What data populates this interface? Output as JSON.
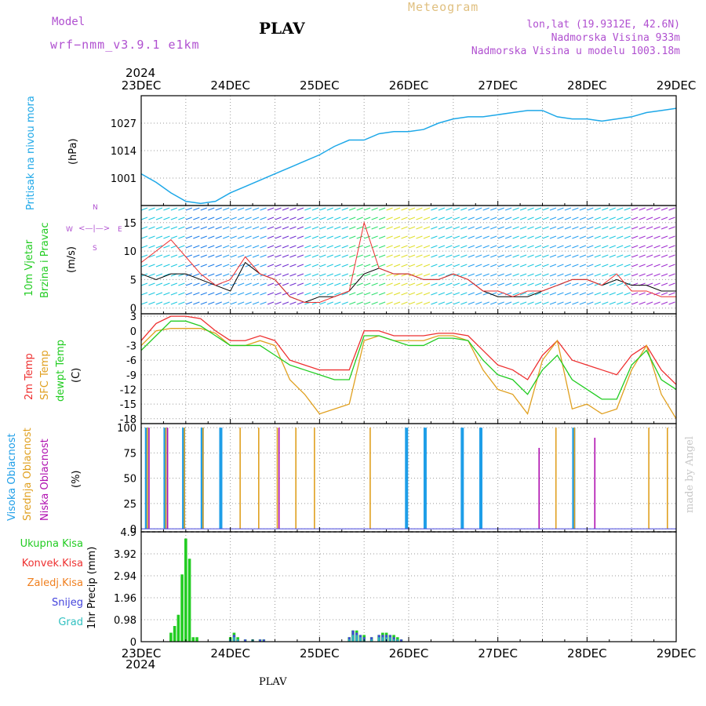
{
  "header": {
    "model_label": "Model",
    "model_name": "wrf−nmm_v3.9.1  e1km",
    "station": "PLAV",
    "meteogram_label": "Meteogram",
    "lonlat": "lon,lat (19.9312E, 42.6N)",
    "altitude": "Nadmorska Visina 933m",
    "model_altitude": "Nadmorska Visina u modelu 1003.18m",
    "year_top": "2024",
    "year_bottom": "2024",
    "footer_station": "PLAV",
    "credit": "made by Angel"
  },
  "colors": {
    "pressure": "#1ea8e8",
    "temp2m": "#ee3030",
    "sfc_temp": "#e0a020",
    "dewpt": "#22cc22",
    "high_cloud": "#1e9ee8",
    "mid_cloud": "#e0a020",
    "low_cloud": "#b010b0",
    "total_precip": "#22cc22",
    "conv_precip": "#ee3030",
    "frz_precip": "#f08020",
    "snow": "#4444dd",
    "graupel": "#30c0c0",
    "wind_speed": "#000000",
    "wind_gust": "#ee3030",
    "model_text": "#b050d0",
    "meteogram_text": "#e0c080",
    "credit_text": "#c0c0c0"
  },
  "x_axis": {
    "days": [
      "23DEC",
      "24DEC",
      "25DEC",
      "26DEC",
      "27DEC",
      "28DEC",
      "29DEC"
    ]
  },
  "panels": {
    "pressure": {
      "label_main": "Pritisak na nivou mora",
      "unit": "(hPa)",
      "ticks": [
        "1001",
        "1014",
        "1027"
      ]
    },
    "wind": {
      "label_main": "10m Vjetar",
      "label_sub": "Brzina i Pravac",
      "unit": "(m/s)",
      "ticks": [
        "0",
        "5",
        "10",
        "15"
      ],
      "compass_n": "N",
      "compass_e": "E",
      "compass_w": "W",
      "compass_s": "S"
    },
    "temp": {
      "label_2m": "2m Temp",
      "label_sfc": "SFC Temp",
      "label_dewpt": "dewpt Temp",
      "unit": "(C)",
      "ticks": [
        "3",
        "0",
        "-3",
        "-6",
        "-9",
        "-12",
        "-15",
        "-18"
      ]
    },
    "cloud": {
      "label_high": "Visoka Oblacnost",
      "label_mid": "Srednja Oblacnost",
      "label_low": "Niska Oblacnost",
      "unit": "(%)",
      "ticks": [
        "0",
        "25",
        "50",
        "75",
        "100"
      ]
    },
    "precip": {
      "legend_total": "Ukupna Kisa",
      "legend_conv": "Konvek.Kisa",
      "legend_frz": "Zaledj.Kisa",
      "legend_snow": "Snijeg",
      "legend_grad": "Grad",
      "unit": "1hr Precip (mm)",
      "ticks": [
        "0",
        "0.98",
        "1.96",
        "2.94",
        "3.92",
        "4.9"
      ]
    }
  },
  "chart_data": [
    {
      "type": "line",
      "ylabel": "Pritisak na nivou mora (hPa)",
      "ylim": [
        988,
        1040
      ],
      "x": [
        0,
        4,
        8,
        12,
        16,
        20,
        24,
        28,
        32,
        36,
        40,
        44,
        48,
        52,
        56,
        60,
        64,
        68,
        72,
        76,
        80,
        84,
        88,
        92,
        96,
        100,
        104,
        108,
        112,
        116,
        120,
        124,
        128,
        132,
        136,
        140,
        144
      ],
      "series": [
        {
          "values": [
            1003,
            999,
            994,
            990,
            989,
            990,
            994,
            997,
            1000,
            1003,
            1006,
            1009,
            1012,
            1016,
            1019,
            1019,
            1022,
            1023,
            1023,
            1024,
            1027,
            1029,
            1030,
            1030,
            1031,
            1032,
            1033,
            1033,
            1030,
            1029,
            1029,
            1028,
            1029,
            1030,
            1032,
            1033,
            1034
          ]
        }
      ]
    },
    {
      "type": "line",
      "ylabel": "10m Vjetar Brzina i Pravac (m/s)",
      "ylim": [
        -1,
        18
      ],
      "x": [
        0,
        4,
        8,
        12,
        16,
        20,
        24,
        28,
        32,
        36,
        40,
        44,
        48,
        52,
        56,
        60,
        64,
        68,
        72,
        76,
        80,
        84,
        88,
        92,
        96,
        100,
        104,
        108,
        112,
        116,
        120,
        124,
        128,
        132,
        136,
        140,
        144
      ],
      "series": [
        {
          "values": [
            6,
            5,
            6,
            6,
            5,
            4,
            3,
            8,
            6,
            5,
            2,
            1,
            2,
            2,
            3,
            6,
            7,
            6,
            6,
            5,
            5,
            6,
            5,
            3,
            2,
            2,
            2,
            3,
            4,
            5,
            5,
            4,
            5,
            4,
            4,
            3,
            3
          ]
        },
        {
          "values": [
            8,
            10,
            12,
            9,
            6,
            4,
            5,
            9,
            6,
            5,
            2,
            1,
            1,
            2,
            3,
            15,
            7,
            6,
            6,
            5,
            5,
            6,
            5,
            3,
            3,
            2,
            3,
            3,
            4,
            5,
            5,
            4,
            6,
            3,
            3,
            2,
            2
          ]
        }
      ]
    },
    {
      "type": "line",
      "ylabel": "2m Temp / SFC Temp / dewpt Temp (C)",
      "ylim": [
        -19,
        3.5
      ],
      "x": [
        0,
        4,
        8,
        12,
        16,
        20,
        24,
        28,
        32,
        36,
        40,
        44,
        48,
        52,
        56,
        60,
        64,
        68,
        72,
        76,
        80,
        84,
        88,
        92,
        96,
        100,
        104,
        108,
        112,
        116,
        120,
        124,
        128,
        132,
        136,
        140,
        144
      ],
      "series": [
        {
          "name": "2m Temp",
          "values": [
            -2,
            1.5,
            3,
            3,
            2.5,
            0,
            -2,
            -2,
            -1,
            -2,
            -6,
            -7,
            -8,
            -8,
            -8,
            0,
            0,
            -1,
            -1,
            -1,
            -0.5,
            -0.5,
            -1,
            -4,
            -7,
            -8,
            -10,
            -5,
            -2,
            -6,
            -7,
            -8,
            -9,
            -5,
            -3,
            -8,
            -11
          ]
        },
        {
          "name": "SFC Temp",
          "values": [
            -3,
            0,
            0.5,
            0.5,
            0.5,
            -0.5,
            -3,
            -3,
            -2,
            -3,
            -10,
            -13,
            -17,
            -16,
            -15,
            -2,
            -1,
            -2,
            -2,
            -2,
            -1,
            -1,
            -2,
            -8,
            -12,
            -13,
            -17,
            -6,
            -2,
            -16,
            -15,
            -17,
            -16,
            -8,
            -3,
            -13,
            -18
          ]
        },
        {
          "name": "dewpt Temp",
          "values": [
            -4,
            -1,
            2,
            2,
            1,
            -1,
            -3,
            -3,
            -3,
            -5,
            -7,
            -8,
            -9,
            -10,
            -10,
            -1,
            -1,
            -2,
            -3,
            -3,
            -1.5,
            -1.5,
            -2,
            -6,
            -9,
            -10,
            -13,
            -8,
            -5,
            -10,
            -12,
            -14,
            -14,
            -7,
            -4,
            -10,
            -12
          ]
        }
      ]
    },
    {
      "type": "bar",
      "ylabel": "Oblacnost (%)",
      "ylim": [
        0,
        100
      ],
      "x": [
        1,
        6,
        11,
        16,
        21,
        26,
        31,
        36,
        41,
        46,
        51,
        56,
        61,
        66,
        71,
        76,
        81,
        86,
        91,
        96,
        101,
        106,
        111,
        116,
        121,
        126,
        131,
        136,
        141
      ],
      "series": [
        {
          "name": "Visoka Oblacnost",
          "values": [
            100,
            100,
            100,
            100,
            100,
            0,
            0,
            0,
            0,
            0,
            0,
            0,
            0,
            0,
            100,
            100,
            0,
            100,
            100,
            0,
            0,
            0,
            0,
            100,
            0,
            0,
            0,
            0,
            0
          ]
        },
        {
          "name": "Srednja Oblacnost",
          "values": [
            100,
            100,
            100,
            100,
            0,
            100,
            100,
            100,
            100,
            100,
            0,
            0,
            100,
            0,
            0,
            0,
            0,
            0,
            0,
            0,
            0,
            0,
            100,
            100,
            0,
            0,
            0,
            100,
            100
          ]
        },
        {
          "name": "Niska Oblacnost",
          "values": [
            100,
            100,
            0,
            0,
            0,
            0,
            0,
            100,
            0,
            0,
            0,
            0,
            0,
            0,
            0,
            0,
            0,
            0,
            0,
            0,
            0,
            80,
            0,
            0,
            90,
            0,
            0,
            0,
            0
          ]
        }
      ]
    },
    {
      "type": "bar",
      "ylabel": "1hr Precip (mm)",
      "ylim": [
        0,
        4.9
      ],
      "x": [
        8,
        9,
        10,
        11,
        12,
        13,
        14,
        15,
        24,
        25,
        26,
        28,
        30,
        32,
        33,
        56,
        57,
        58,
        59,
        60,
        62,
        64,
        65,
        66,
        67,
        68,
        69,
        70
      ],
      "series": [
        {
          "name": "Ukupna Kisa",
          "values": [
            0.4,
            0.7,
            1.2,
            3.0,
            4.6,
            3.7,
            0.2,
            0.2,
            0.2,
            0.4,
            0.2,
            0.1,
            0.1,
            0.1,
            0.1,
            0.2,
            0.5,
            0.5,
            0.3,
            0.3,
            0.2,
            0.3,
            0.4,
            0.4,
            0.3,
            0.3,
            0.2,
            0.1
          ]
        },
        {
          "name": "Snijeg",
          "values": [
            0,
            0,
            0,
            0,
            0,
            0,
            0,
            0,
            0.1,
            0.3,
            0.1,
            0.1,
            0.1,
            0.1,
            0.1,
            0.2,
            0.5,
            0.4,
            0.3,
            0.2,
            0.2,
            0.3,
            0.3,
            0.3,
            0.3,
            0.2,
            0.1,
            0.1
          ]
        },
        {
          "name": "Grad",
          "values": [
            0,
            0,
            0,
            0,
            0,
            0,
            0,
            0,
            0.1,
            0.2,
            0.1,
            0,
            0.1,
            0,
            0,
            0.1,
            0.3,
            0.3,
            0.2,
            0.1,
            0.1,
            0.2,
            0.2,
            0.2,
            0.2,
            0.1,
            0.1,
            0
          ]
        }
      ]
    }
  ]
}
